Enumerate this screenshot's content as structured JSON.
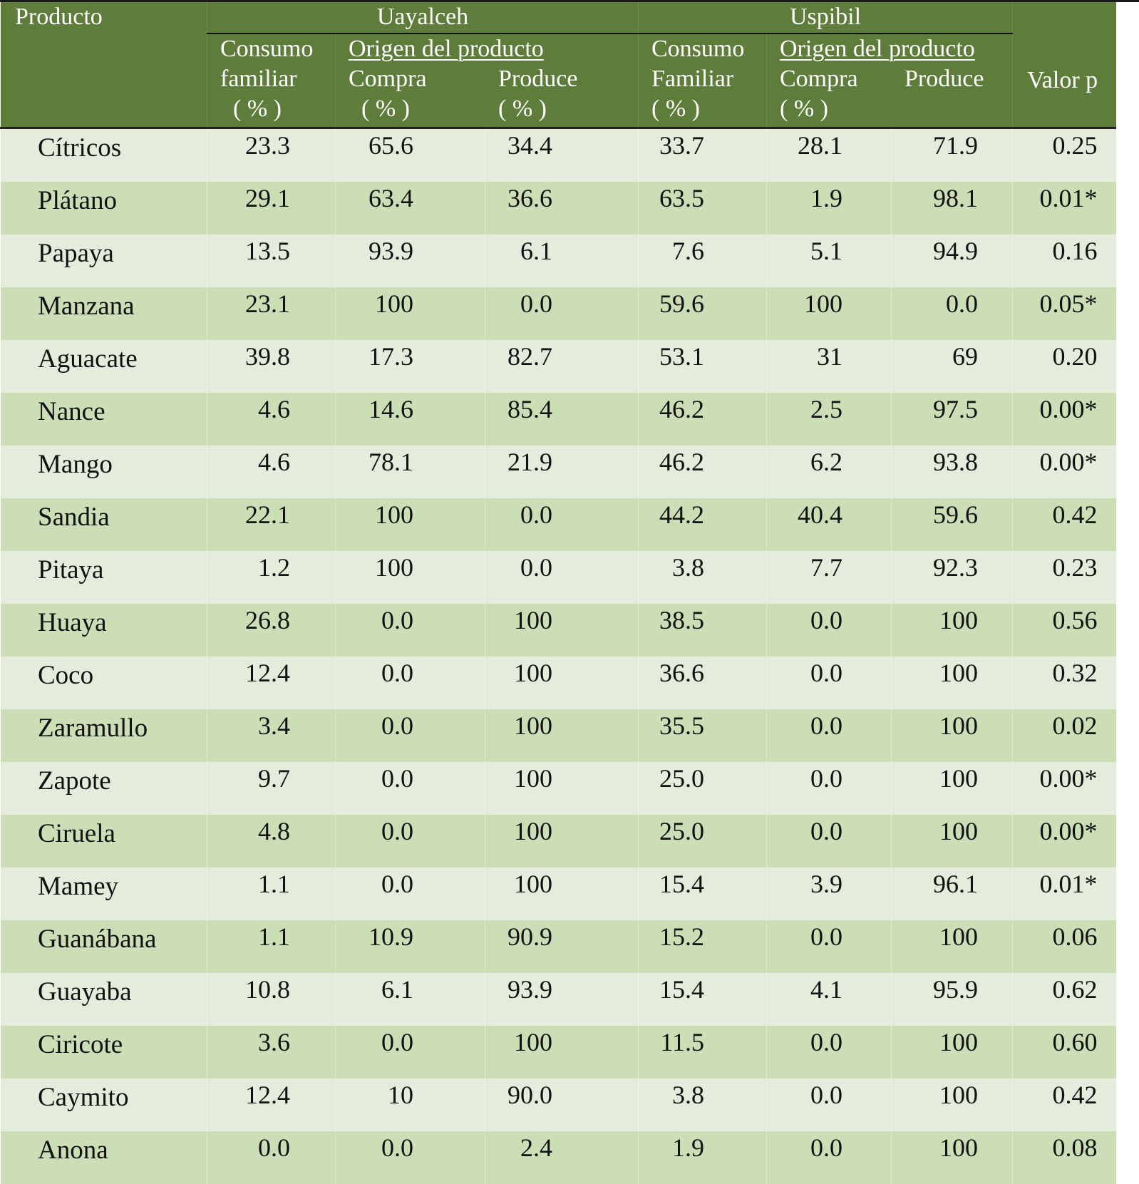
{
  "table": {
    "header": {
      "producto": "Producto",
      "group_uayalceh": "Uayalceh",
      "group_uspibil": "Uspibil",
      "valor_p": "Valor p",
      "uayalceh": {
        "consumo_l1": "Consumo",
        "consumo_l2": "familiar",
        "pct": "( % )",
        "origen": "Origen del producto",
        "compra": "Compra",
        "produce": "Produce"
      },
      "uspibil": {
        "consumo_l1": "Consumo",
        "consumo_l2": "Familiar",
        "pct": "( % )",
        "origen": "Origen del producto",
        "compra": "Compra",
        "produce": "Produce"
      }
    },
    "columns": [
      "Producto",
      "Uayalceh Consumo familiar (%)",
      "Uayalceh Compra (%)",
      "Uayalceh Produce (%)",
      "Uspibil Consumo Familiar (%)",
      "Uspibil Compra (%)",
      "Uspibil Produce",
      "Valor p"
    ],
    "rows": [
      {
        "producto": "Cítricos",
        "ua_consumo": "23.3",
        "ua_compra": "65.6",
        "ua_produce": "34.4",
        "us_consumo": "33.7",
        "us_compra": "28.1",
        "us_produce": "71.9",
        "valor_p": "0.25"
      },
      {
        "producto": "Plátano",
        "ua_consumo": "29.1",
        "ua_compra": "63.4",
        "ua_produce": "36.6",
        "us_consumo": "63.5",
        "us_compra": "1.9",
        "us_produce": "98.1",
        "valor_p": "0.01*"
      },
      {
        "producto": "Papaya",
        "ua_consumo": "13.5",
        "ua_compra": "93.9",
        "ua_produce": "6.1",
        "us_consumo": "7.6",
        "us_compra": "5.1",
        "us_produce": "94.9",
        "valor_p": "0.16"
      },
      {
        "producto": "Manzana",
        "ua_consumo": "23.1",
        "ua_compra": "100",
        "ua_produce": "0.0",
        "us_consumo": "59.6",
        "us_compra": "100",
        "us_produce": "0.0",
        "valor_p": "0.05*"
      },
      {
        "producto": "Aguacate",
        "ua_consumo": "39.8",
        "ua_compra": "17.3",
        "ua_produce": "82.7",
        "us_consumo": "53.1",
        "us_compra": "31",
        "us_produce": "69",
        "valor_p": "0.20"
      },
      {
        "producto": "Nance",
        "ua_consumo": "4.6",
        "ua_compra": "14.6",
        "ua_produce": "85.4",
        "us_consumo": "46.2",
        "us_compra": "2.5",
        "us_produce": "97.5",
        "valor_p": "0.00*"
      },
      {
        "producto": "Mango",
        "ua_consumo": "4.6",
        "ua_compra": "78.1",
        "ua_produce": "21.9",
        "us_consumo": "46.2",
        "us_compra": "6.2",
        "us_produce": "93.8",
        "valor_p": "0.00*"
      },
      {
        "producto": "Sandia",
        "ua_consumo": "22.1",
        "ua_compra": "100",
        "ua_produce": "0.0",
        "us_consumo": "44.2",
        "us_compra": "40.4",
        "us_produce": "59.6",
        "valor_p": "0.42"
      },
      {
        "producto": "Pitaya",
        "ua_consumo": "1.2",
        "ua_compra": "100",
        "ua_produce": "0.0",
        "us_consumo": "3.8",
        "us_compra": "7.7",
        "us_produce": "92.3",
        "valor_p": "0.23"
      },
      {
        "producto": "Huaya",
        "ua_consumo": "26.8",
        "ua_compra": "0.0",
        "ua_produce": "100",
        "us_consumo": "38.5",
        "us_compra": "0.0",
        "us_produce": "100",
        "valor_p": "0.56"
      },
      {
        "producto": "Coco",
        "ua_consumo": "12.4",
        "ua_compra": "0.0",
        "ua_produce": "100",
        "us_consumo": "36.6",
        "us_compra": "0.0",
        "us_produce": "100",
        "valor_p": "0.32"
      },
      {
        "producto": "Zaramullo",
        "ua_consumo": "3.4",
        "ua_compra": "0.0",
        "ua_produce": "100",
        "us_consumo": "35.5",
        "us_compra": "0.0",
        "us_produce": "100",
        "valor_p": "0.02"
      },
      {
        "producto": "Zapote",
        "ua_consumo": "9.7",
        "ua_compra": "0.0",
        "ua_produce": "100",
        "us_consumo": "25.0",
        "us_compra": "0.0",
        "us_produce": "100",
        "valor_p": "0.00*"
      },
      {
        "producto": "Ciruela",
        "ua_consumo": "4.8",
        "ua_compra": "0.0",
        "ua_produce": "100",
        "us_consumo": "25.0",
        "us_compra": "0.0",
        "us_produce": "100",
        "valor_p": "0.00*"
      },
      {
        "producto": "Mamey",
        "ua_consumo": "1.1",
        "ua_compra": "0.0",
        "ua_produce": "100",
        "us_consumo": "15.4",
        "us_compra": "3.9",
        "us_produce": "96.1",
        "valor_p": "0.01*"
      },
      {
        "producto": "Guanábana",
        "ua_consumo": "1.1",
        "ua_compra": "10.9",
        "ua_produce": "90.9",
        "us_consumo": "15.2",
        "us_compra": "0.0",
        "us_produce": "100",
        "valor_p": "0.06"
      },
      {
        "producto": "Guayaba",
        "ua_consumo": "10.8",
        "ua_compra": "6.1",
        "ua_produce": "93.9",
        "us_consumo": "15.4",
        "us_compra": "4.1",
        "us_produce": "95.9",
        "valor_p": "0.62"
      },
      {
        "producto": "Ciricote",
        "ua_consumo": "3.6",
        "ua_compra": "0.0",
        "ua_produce": "100",
        "us_consumo": "11.5",
        "us_compra": "0.0",
        "us_produce": "100",
        "valor_p": "0.60"
      },
      {
        "producto": "Caymito",
        "ua_consumo": "12.4",
        "ua_compra": "10",
        "ua_produce": "90.0",
        "us_consumo": "3.8",
        "us_compra": "0.0",
        "us_produce": "100",
        "valor_p": "0.42"
      },
      {
        "producto": "Anona",
        "ua_consumo": "0.0",
        "ua_compra": "0.0",
        "ua_produce": "2.4",
        "us_consumo": "1.9",
        "us_compra": "0.0",
        "us_produce": "100",
        "valor_p": "0.08"
      }
    ]
  },
  "colors": {
    "header_bg": "#5f7d3a",
    "header_text": "#ffffff",
    "row_light": "#e4eddb",
    "row_dark": "#ccdeb5"
  }
}
